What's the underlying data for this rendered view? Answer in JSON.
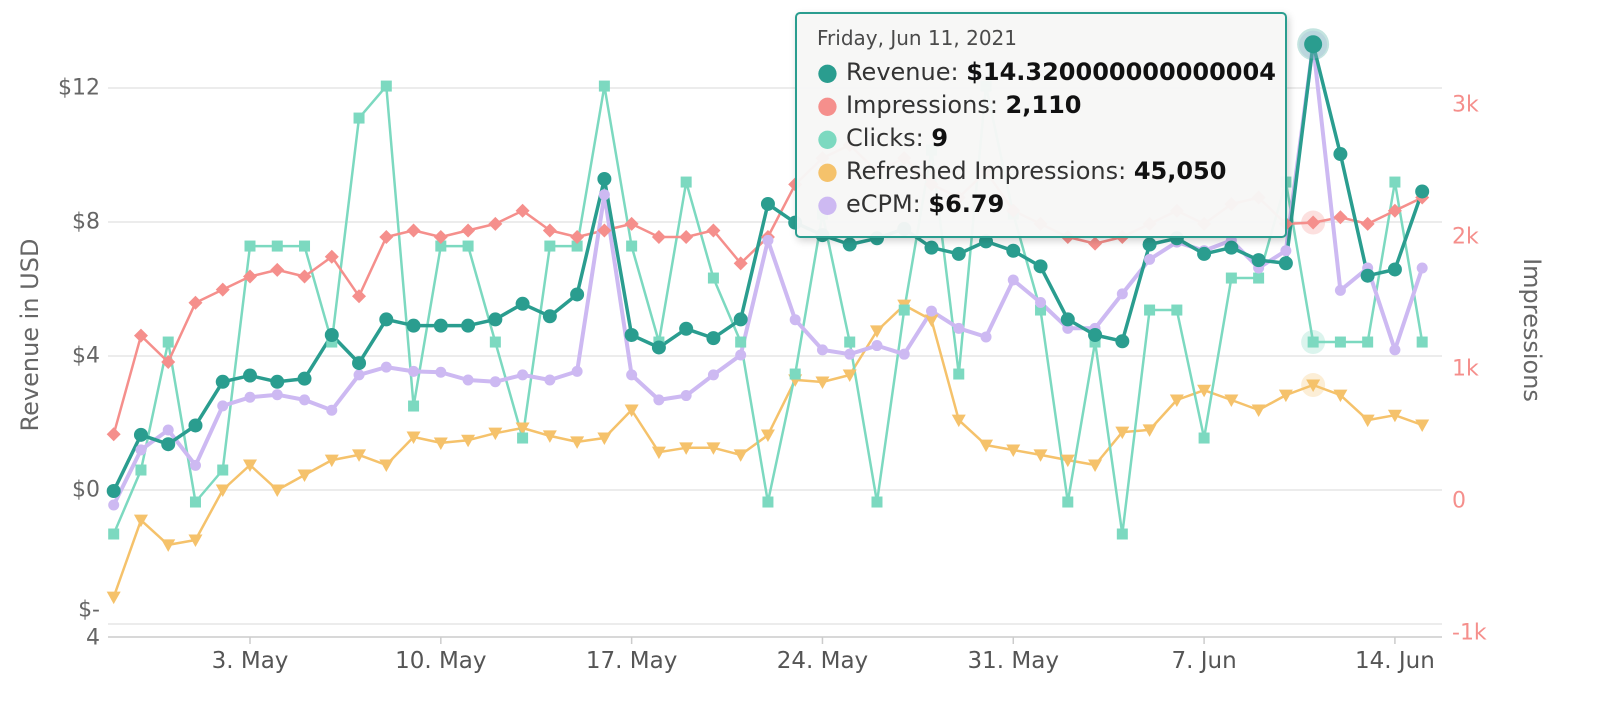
{
  "page": {
    "background": "#ffffff"
  },
  "tooltip": {
    "header": "Friday, Jun 11, 2021",
    "rows": [
      {
        "label": "Revenue:",
        "value": "$14.320000000000004",
        "color": "#2a9d8f"
      },
      {
        "label": "Impressions:",
        "value": "2,110",
        "color": "#f58f8c"
      },
      {
        "label": "Clicks:",
        "value": "9",
        "color": "#7cd9c0"
      },
      {
        "label": "Refreshed Impressions:",
        "value": "45,050",
        "color": "#f5c26b"
      },
      {
        "label": "eCPM:",
        "value": "$6.79",
        "color": "#cdb9f2"
      }
    ]
  },
  "chart_data": {
    "type": "line",
    "title": "",
    "grid": true,
    "left_axis": {
      "title": "Revenue in USD",
      "ticks": [
        "$12",
        "$8",
        "$4",
        "$0",
        "$-\n4"
      ],
      "color": "#666666"
    },
    "right_axis": {
      "title": "Impressions",
      "ticks": [
        "3k",
        "2k",
        "1k",
        "0",
        "-1k"
      ],
      "color": "#f58f8c"
    },
    "x_tick_labels": [
      "3. May",
      "10. May",
      "17. May",
      "24. May",
      "31. May",
      "7. Jun",
      "14. Jun"
    ],
    "x_tick_indices": [
      5,
      12,
      19,
      26,
      33,
      40,
      47
    ],
    "x_dates": [
      "Apr 28",
      "Apr 29",
      "Apr 30",
      "May 1",
      "May 2",
      "May 3",
      "May 4",
      "May 5",
      "May 6",
      "May 7",
      "May 8",
      "May 9",
      "May 10",
      "May 11",
      "May 12",
      "May 13",
      "May 14",
      "May 15",
      "May 16",
      "May 17",
      "May 18",
      "May 19",
      "May 20",
      "May 21",
      "May 22",
      "May 23",
      "May 24",
      "May 25",
      "May 26",
      "May 27",
      "May 28",
      "May 29",
      "May 30",
      "May 31",
      "Jun 1",
      "Jun 2",
      "Jun 3",
      "Jun 4",
      "Jun 5",
      "Jun 6",
      "Jun 7",
      "Jun 8",
      "Jun 9",
      "Jun 10",
      "Jun 11",
      "Jun 12",
      "Jun 13",
      "Jun 14",
      "Jun 15"
    ],
    "highlight_index": 44,
    "series": [
      {
        "name": "Refreshed Impressions",
        "color": "#f5c26b",
        "marker": "triangle-down",
        "axis": {
          "min": 0,
          "max": 108500
        },
        "values": [
          6050,
          20200,
          15650,
          16550,
          25750,
          30350,
          25750,
          28500,
          31250,
          32200,
          30350,
          35500,
          34400,
          34900,
          36200,
          37150,
          35700,
          34600,
          35300,
          40450,
          32700,
          33500,
          33500,
          32200,
          35850,
          46000,
          45600,
          46900,
          55000,
          59750,
          57000,
          38600,
          34000,
          33100,
          32200,
          31250,
          30350,
          36400,
          36800,
          42300,
          44100,
          42300,
          40450,
          43200,
          45050,
          43200,
          38600,
          39500,
          37700
        ]
      },
      {
        "name": "Clicks",
        "color": "#7cd9c0",
        "marker": "square",
        "axis": {
          "min": 0,
          "max": 18.44
        },
        "values": [
          3,
          5,
          9,
          4,
          5,
          12,
          12,
          12,
          9,
          16,
          17,
          7,
          12,
          12,
          9,
          6,
          12,
          12,
          17,
          12,
          9,
          14,
          11,
          9,
          4,
          8,
          13,
          9,
          4,
          10,
          15,
          8,
          17,
          13,
          10,
          4,
          9,
          3,
          10,
          10,
          6,
          11,
          11,
          14,
          9,
          9,
          9,
          14,
          9
        ]
      },
      {
        "name": "Impressions",
        "color": "#f58f8c",
        "marker": "diamond",
        "axis": {
          "min": -988,
          "max": 3498
        },
        "values": [
          500,
          1250,
          1050,
          1500,
          1600,
          1700,
          1750,
          1700,
          1850,
          1550,
          2000,
          2050,
          2000,
          2050,
          2100,
          2200,
          2050,
          2000,
          2050,
          2100,
          2000,
          2000,
          2050,
          1800,
          2000,
          2400,
          2600,
          2700,
          2500,
          2600,
          2400,
          2300,
          2500,
          2200,
          2100,
          2000,
          1950,
          2000,
          2100,
          2200,
          2100,
          2250,
          2300,
          2100,
          2110,
          2150,
          2100,
          2200,
          2300
        ]
      },
      {
        "name": "eCPM",
        "color": "#cdb9f2",
        "marker": "circle-small",
        "axis": {
          "min": 0,
          "max": 6.845
        },
        "values": [
          1.45,
          2.09,
          2.32,
          1.91,
          2.6,
          2.7,
          2.73,
          2.67,
          2.55,
          2.96,
          3.05,
          3.0,
          2.99,
          2.9,
          2.88,
          2.96,
          2.9,
          3.0,
          5.05,
          2.96,
          2.67,
          2.72,
          2.96,
          3.19,
          4.52,
          3.6,
          3.25,
          3.2,
          3.3,
          3.2,
          3.7,
          3.5,
          3.4,
          4.06,
          3.8,
          3.5,
          3.5,
          3.9,
          4.3,
          4.5,
          4.4,
          4.52,
          4.2,
          4.4,
          6.79,
          3.94,
          4.2,
          3.25,
          4.2
        ]
      },
      {
        "name": "Revenue",
        "color": "#2a9d8f",
        "marker": "circle",
        "axis": {
          "min": -4.455,
          "max": 14.455
        },
        "values": [
          0.0,
          1.8,
          1.5,
          2.1,
          3.5,
          3.7,
          3.5,
          3.6,
          5.0,
          4.1,
          5.5,
          5.3,
          5.3,
          5.3,
          5.5,
          6.0,
          5.6,
          6.3,
          10.0,
          5.0,
          4.6,
          5.2,
          4.9,
          5.5,
          9.2,
          8.6,
          8.2,
          7.9,
          8.1,
          8.4,
          7.8,
          7.6,
          8.0,
          7.7,
          7.2,
          5.5,
          5.0,
          4.8,
          7.9,
          8.1,
          7.6,
          7.8,
          7.4,
          7.3,
          14.32,
          10.8,
          6.9,
          7.1,
          9.6
        ]
      }
    ]
  }
}
